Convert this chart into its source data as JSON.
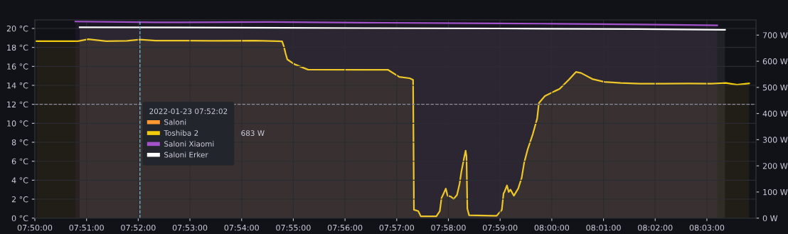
{
  "chart_data": {
    "type": "area",
    "legend_title": "2022-01-23 07:52:02",
    "annotations": [
      "683 W"
    ],
    "xlim": [
      "2022-01-23T07:50:00",
      "2022-01-23T08:03:57"
    ],
    "xticks": [
      {
        "value": "2022-01-23T07:50:00",
        "label": "07:50:00"
      },
      {
        "value": "2022-01-23T07:51:00",
        "label": "07:51:00"
      },
      {
        "value": "2022-01-23T07:52:00",
        "label": "07:52:00"
      },
      {
        "value": "2022-01-23T07:53:00",
        "label": "07:53:00"
      },
      {
        "value": "2022-01-23T07:54:00",
        "label": "07:54:00"
      },
      {
        "value": "2022-01-23T07:55:00",
        "label": "07:55:00"
      },
      {
        "value": "2022-01-23T07:56:00",
        "label": "07:56:00"
      },
      {
        "value": "2022-01-23T07:57:00",
        "label": "07:57:00"
      },
      {
        "value": "2022-01-23T07:58:00",
        "label": "07:58:00"
      },
      {
        "value": "2022-01-23T07:59:00",
        "label": "07:59:00"
      },
      {
        "value": "2022-01-23T08:00:00",
        "label": "08:00:00"
      },
      {
        "value": "2022-01-23T08:01:00",
        "label": "08:01:00"
      },
      {
        "value": "2022-01-23T08:02:00",
        "label": "08:02:00"
      },
      {
        "value": "2022-01-23T08:03:00",
        "label": "08:03:00"
      }
    ],
    "ylim": [
      0,
      20.9
    ],
    "yticks": [
      {
        "value": 0,
        "label": "0 °C"
      },
      {
        "value": 2,
        "label": "2 °C"
      },
      {
        "value": 4,
        "label": "4 °C"
      },
      {
        "value": 6,
        "label": "6 °C"
      },
      {
        "value": 8,
        "label": "8 °C"
      },
      {
        "value": 10,
        "label": "10 °C"
      },
      {
        "value": 12,
        "label": "12 °C"
      },
      {
        "value": 14,
        "label": "14 °C"
      },
      {
        "value": 16,
        "label": "16 °C"
      },
      {
        "value": 18,
        "label": "18 °C"
      },
      {
        "value": 20,
        "label": "20 °C"
      }
    ],
    "y2lim": [
      0,
      758
    ],
    "y2ticks": [
      {
        "value": 0,
        "label": "0 W"
      },
      {
        "value": 100,
        "label": "100 W"
      },
      {
        "value": 200,
        "label": "200 W"
      },
      {
        "value": 300,
        "label": "300 W"
      },
      {
        "value": 400,
        "label": "400 W"
      },
      {
        "value": 500,
        "label": "500 W"
      },
      {
        "value": 600,
        "label": "600 W"
      },
      {
        "value": 700,
        "label": "700 W"
      }
    ],
    "ref_lines": [
      {
        "axis": "y",
        "value": 12,
        "label": null,
        "color": "#8e8e99",
        "line_style": "dashed"
      },
      {
        "axis": "x",
        "value": "2022-01-23T07:52:02",
        "label": null,
        "color": "#7fb8cc",
        "line_style": "dashed"
      }
    ],
    "grid": true,
    "legend": "left",
    "marker": "none",
    "line_style": "solid",
    "series": [
      {
        "name": "Saloni",
        "color": "#ff9830"
      },
      {
        "name": "Toshiba 2",
        "color": "#f2cc0c",
        "axis": "y2",
        "x": [
          "2022-01-23T07:50:02",
          "2022-01-23T07:50:50",
          "2022-01-23T07:51:02",
          "2022-01-23T07:51:23",
          "2022-01-23T07:51:47",
          "2022-01-23T07:52:02",
          "2022-01-23T07:52:20",
          "2022-01-23T07:52:54",
          "2022-01-23T07:53:27",
          "2022-01-23T07:54:16",
          "2022-01-23T07:54:41",
          "2022-01-23T07:54:47",
          "2022-01-23T07:54:49",
          "2022-01-23T07:54:51",
          "2022-01-23T07:54:53",
          "2022-01-23T07:55:01",
          "2022-01-23T07:55:17",
          "2022-01-23T07:56:50",
          "2022-01-23T07:57:03",
          "2022-01-23T07:57:15",
          "2022-01-23T07:57:19",
          "2022-01-23T07:57:20",
          "2022-01-23T07:57:25",
          "2022-01-23T07:57:28",
          "2022-01-23T07:57:46",
          "2022-01-23T07:57:50",
          "2022-01-23T07:57:52",
          "2022-01-23T07:57:54",
          "2022-01-23T07:57:57",
          "2022-01-23T07:57:59",
          "2022-01-23T07:58:03",
          "2022-01-23T07:58:06",
          "2022-01-23T07:58:10",
          "2022-01-23T07:58:13",
          "2022-01-23T07:58:15",
          "2022-01-23T07:58:18",
          "2022-01-23T07:58:20",
          "2022-01-23T07:58:21",
          "2022-01-23T07:58:22",
          "2022-01-23T07:58:24",
          "2022-01-23T07:58:52",
          "2022-01-23T07:58:56",
          "2022-01-23T07:59:02",
          "2022-01-23T07:59:04",
          "2022-01-23T07:59:05",
          "2022-01-23T07:59:08",
          "2022-01-23T07:59:10",
          "2022-01-23T07:59:12",
          "2022-01-23T07:59:16",
          "2022-01-23T07:59:21",
          "2022-01-23T07:59:25",
          "2022-01-23T07:59:28",
          "2022-01-23T07:59:32",
          "2022-01-23T07:59:38",
          "2022-01-23T07:59:43",
          "2022-01-23T07:59:45",
          "2022-01-23T07:59:52",
          "2022-01-23T08:00:03",
          "2022-01-23T08:00:09",
          "2022-01-23T08:00:20",
          "2022-01-23T08:00:28",
          "2022-01-23T08:00:34",
          "2022-01-23T08:00:47",
          "2022-01-23T08:01:01",
          "2022-01-23T08:01:20",
          "2022-01-23T08:01:42",
          "2022-01-23T08:02:10",
          "2022-01-23T08:02:38",
          "2022-01-23T08:03:05",
          "2022-01-23T08:03:22",
          "2022-01-23T08:03:35",
          "2022-01-23T08:03:49"
        ],
        "values": [
          677,
          677,
          684,
          677,
          678,
          683,
          679,
          679,
          678,
          679,
          677,
          676,
          657,
          630,
          607,
          589,
          568,
          567,
          540,
          535,
          529,
          32,
          27,
          7,
          7,
          27,
          77,
          91,
          113,
          86,
          82,
          73,
          89,
          132,
          177,
          227,
          258,
          236,
          36,
          11,
          9,
          9,
          32,
          95,
          100,
          125,
          100,
          109,
          86,
          113,
          154,
          213,
          263,
          322,
          381,
          440,
          467,
          485,
          494,
          530,
          559,
          555,
          532,
          521,
          517,
          514,
          514,
          515,
          514,
          517,
          510,
          515
        ]
      },
      {
        "name": "Saloni Xiaomi",
        "color": "#a352cc",
        "x": [
          "2022-01-23T07:50:47",
          "2022-01-23T07:52:20",
          "2022-01-23T07:54:33",
          "2022-01-23T07:56:45",
          "2022-01-23T07:58:57",
          "2022-01-23T08:00:03",
          "2022-01-23T08:01:42",
          "2022-01-23T08:03:12"
        ],
        "values": [
          20.73,
          20.64,
          20.68,
          20.6,
          20.53,
          20.5,
          20.43,
          20.33
        ]
      },
      {
        "name": "Saloni Erker",
        "color": "#ffffff",
        "x": [
          "2022-01-23T07:50:52",
          "2022-01-23T07:54:49",
          "2022-01-23T07:58:57",
          "2022-01-23T08:01:42",
          "2022-01-23T08:03:21"
        ],
        "values": [
          20.13,
          20.06,
          20.0,
          19.93,
          19.86
        ]
      }
    ]
  }
}
